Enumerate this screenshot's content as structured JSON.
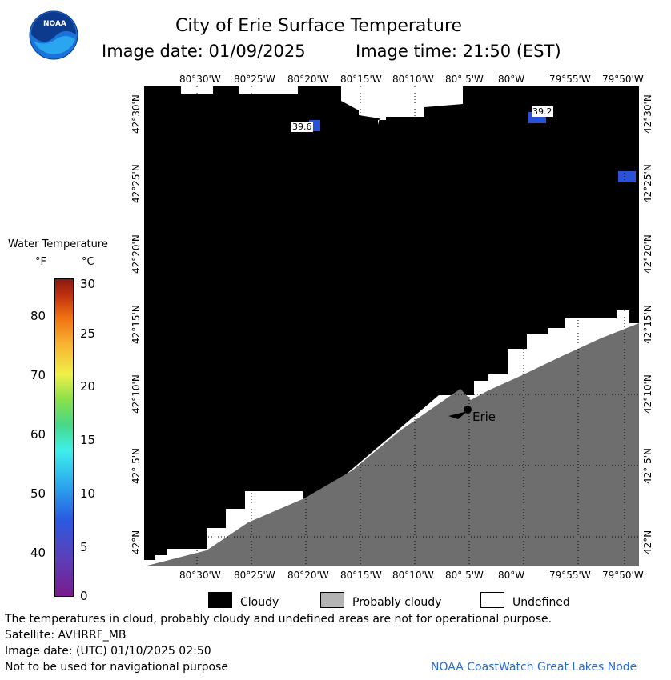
{
  "header": {
    "title": "City of Erie Surface Temperature",
    "image_date": "Image date: 01/09/2025",
    "image_time": "Image time: 21:50 (EST)"
  },
  "logo": {
    "text": "NOAA"
  },
  "colorbar": {
    "title": "Water Temperature",
    "unit_f": "°F",
    "unit_c": "°C",
    "f_ticks": [
      "80",
      "70",
      "60",
      "50",
      "40"
    ],
    "c_ticks": [
      "30",
      "25",
      "20",
      "15",
      "10",
      "5",
      "0"
    ]
  },
  "map": {
    "lon_labels": [
      "80°30'W",
      "80°25'W",
      "80°20'W",
      "80°15'W",
      "80°10'W",
      "80° 5'W",
      "80°W",
      "79°55'W",
      "79°50'W"
    ],
    "lat_labels": [
      "42°30'N",
      "42°25'N",
      "42°20'N",
      "42°15'N",
      "42°10'N",
      "42° 5'N",
      "42°N"
    ],
    "temp_labels": [
      "39.6",
      "39.2"
    ],
    "city_label": "Erie"
  },
  "legend": {
    "cloudy": "Cloudy",
    "probably_cloudy": "Probably cloudy",
    "undefined": "Undefined",
    "colors": {
      "cloudy": "#000000",
      "probably_cloudy": "#b4b4b4",
      "undefined": "#ffffff",
      "land": "#6e6e6e",
      "water_sample": "#2a52d8"
    }
  },
  "footer": {
    "note": "The temperatures in cloud, probably cloudy and undefined areas are not for operational purpose.",
    "satellite": "Satellite: AVHRRF_MB",
    "utc_date": "Image date: (UTC) 01/10/2025  02:50",
    "nav_note": "Not to be used for navigational purpose",
    "credit": "NOAA CoastWatch Great Lakes Node"
  }
}
